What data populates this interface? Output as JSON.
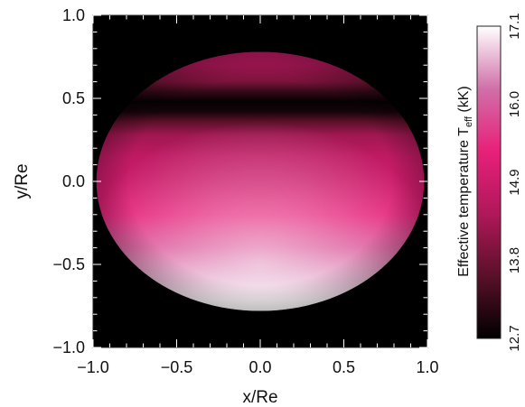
{
  "chart_data": {
    "type": "heatmap",
    "xlabel": "x/Re",
    "ylabel": "y/Re",
    "xlim": [
      -1.0,
      1.0
    ],
    "ylim": [
      -1.0,
      1.0
    ],
    "x_ticks": [
      "−1.0",
      "−0.5",
      "0.0",
      "0.5",
      "1.0"
    ],
    "y_ticks": [
      "−1.0",
      "−0.5",
      "0.0",
      "0.5",
      "1.0"
    ],
    "x_tick_values": [
      -1.0,
      -0.5,
      0.0,
      0.5,
      1.0
    ],
    "y_tick_values": [
      -1.0,
      -0.5,
      0.0,
      0.5,
      1.0
    ],
    "background_color": "#000000",
    "disk": {
      "semi_axis_x": 0.98,
      "semi_axis_y": 0.78,
      "center_y": 0.0,
      "visible_y_range": [
        -0.78,
        0.78
      ]
    },
    "temperature_profile": [
      {
        "y": 0.78,
        "teff": 14.6
      },
      {
        "y": 0.7,
        "teff": 14.4
      },
      {
        "y": 0.6,
        "teff": 13.9
      },
      {
        "y": 0.54,
        "teff": 13.2
      },
      {
        "y": 0.48,
        "teff": 12.75
      },
      {
        "y": 0.42,
        "teff": 12.9
      },
      {
        "y": 0.36,
        "teff": 13.6
      },
      {
        "y": 0.28,
        "teff": 14.3
      },
      {
        "y": 0.15,
        "teff": 14.7
      },
      {
        "y": 0.0,
        "teff": 14.9
      },
      {
        "y": -0.2,
        "teff": 15.3
      },
      {
        "y": -0.4,
        "teff": 15.9
      },
      {
        "y": -0.6,
        "teff": 16.6
      },
      {
        "y": -0.72,
        "teff": 17.0
      },
      {
        "y": -0.78,
        "teff": 17.1
      }
    ],
    "colorbar": {
      "label_main": "Effective temperature T",
      "label_sub": "eff",
      "label_unit": " (kK)",
      "range": [
        12.7,
        17.1
      ],
      "ticks": [
        "12.7",
        "13.8",
        "14.9",
        "16.0",
        "17.1"
      ],
      "tick_values": [
        12.7,
        13.8,
        14.9,
        16.0,
        17.1
      ],
      "colors": [
        "#000000",
        "#5a1028",
        "#b0185a",
        "#e8207a",
        "#d070a8",
        "#ffffff"
      ]
    }
  }
}
